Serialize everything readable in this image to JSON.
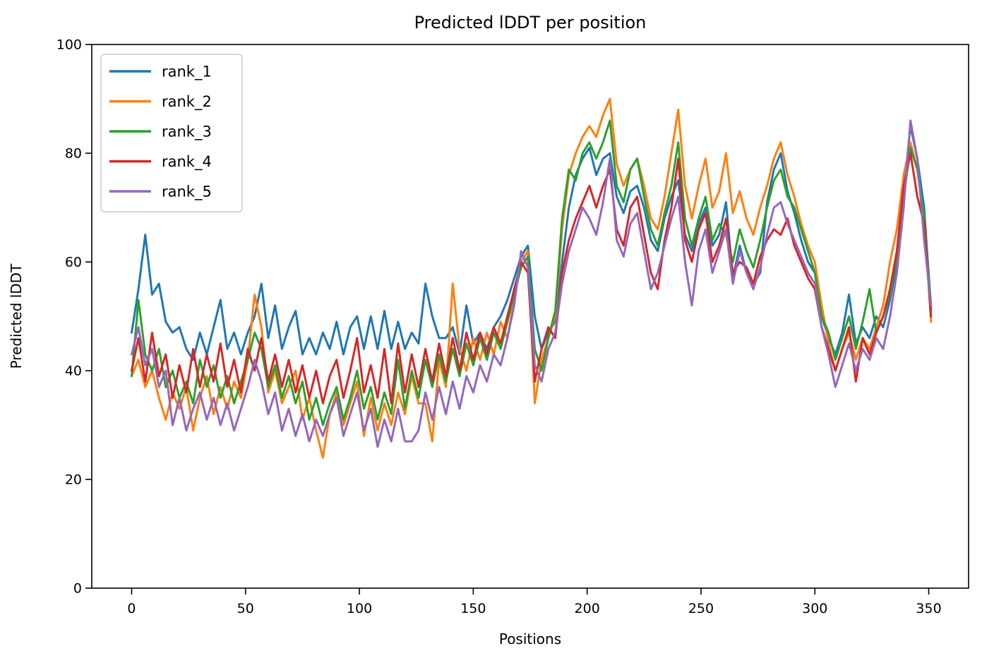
{
  "chart_data": {
    "type": "line",
    "title": "Predicted lDDT per position",
    "xlabel": "Positions",
    "ylabel": "Predicted lDDT",
    "xlim": [
      -17.5,
      367.5
    ],
    "ylim": [
      0,
      100
    ],
    "xticks": [
      0,
      50,
      100,
      150,
      200,
      250,
      300,
      350
    ],
    "yticks": [
      0,
      20,
      40,
      60,
      80,
      100
    ],
    "grid": false,
    "legend_position": "upper left",
    "x": [
      0,
      3,
      6,
      9,
      12,
      15,
      18,
      21,
      24,
      27,
      30,
      33,
      36,
      39,
      42,
      45,
      48,
      51,
      54,
      57,
      60,
      63,
      66,
      69,
      72,
      75,
      78,
      81,
      84,
      87,
      90,
      93,
      96,
      99,
      102,
      105,
      108,
      111,
      114,
      117,
      120,
      123,
      126,
      129,
      132,
      135,
      138,
      141,
      144,
      147,
      150,
      153,
      156,
      159,
      162,
      165,
      168,
      171,
      174,
      177,
      180,
      183,
      186,
      189,
      192,
      195,
      198,
      201,
      204,
      207,
      210,
      213,
      216,
      219,
      222,
      225,
      228,
      231,
      234,
      237,
      240,
      243,
      246,
      249,
      252,
      255,
      258,
      261,
      264,
      267,
      270,
      273,
      276,
      279,
      282,
      285,
      288,
      291,
      294,
      297,
      300,
      303,
      306,
      309,
      312,
      315,
      318,
      321,
      324,
      327,
      330,
      333,
      336,
      339,
      342,
      345,
      348,
      351
    ],
    "series": [
      {
        "name": "rank_1",
        "color": "#1f77b4",
        "values": [
          47,
          55,
          65,
          54,
          56,
          49,
          47,
          48,
          44,
          42,
          47,
          43,
          48,
          53,
          44,
          47,
          43,
          47,
          50,
          56,
          46,
          52,
          44,
          48,
          51,
          43,
          46,
          43,
          47,
          44,
          49,
          43,
          48,
          50,
          44,
          50,
          44,
          51,
          44,
          49,
          44,
          47,
          45,
          56,
          50,
          46,
          46,
          48,
          43,
          52,
          45,
          47,
          44,
          48,
          50,
          53,
          57,
          61,
          63,
          50,
          44,
          47,
          49,
          60,
          70,
          76,
          79,
          81,
          76,
          79,
          80,
          72,
          69,
          73,
          74,
          70,
          64,
          62,
          68,
          72,
          75,
          65,
          62,
          67,
          70,
          63,
          65,
          71,
          57,
          63,
          58,
          56,
          58,
          71,
          77,
          80,
          73,
          69,
          64,
          60,
          58,
          50,
          46,
          43,
          47,
          54,
          45,
          48,
          46,
          50,
          48,
          53,
          60,
          73,
          85,
          79,
          70,
          51
        ]
      },
      {
        "name": "rank_2",
        "color": "#ff7f0e",
        "values": [
          39,
          42,
          37,
          40,
          35,
          31,
          36,
          33,
          37,
          29,
          35,
          39,
          32,
          37,
          33,
          38,
          35,
          42,
          54,
          48,
          36,
          40,
          34,
          37,
          40,
          31,
          35,
          29,
          24,
          32,
          36,
          30,
          34,
          38,
          28,
          35,
          29,
          34,
          30,
          36,
          32,
          39,
          34,
          34,
          27,
          42,
          37,
          56,
          44,
          40,
          46,
          42,
          47,
          43,
          49,
          46,
          53,
          60,
          62,
          34,
          42,
          46,
          50,
          66,
          76,
          80,
          83,
          85,
          83,
          87,
          90,
          78,
          74,
          77,
          79,
          74,
          68,
          66,
          72,
          80,
          88,
          74,
          68,
          74,
          79,
          70,
          73,
          80,
          69,
          73,
          68,
          65,
          70,
          74,
          79,
          82,
          76,
          72,
          67,
          63,
          60,
          52,
          45,
          40,
          44,
          47,
          42,
          46,
          44,
          48,
          52,
          60,
          66,
          76,
          82,
          77,
          68,
          49
        ]
      },
      {
        "name": "rank_3",
        "color": "#2ca02c",
        "values": [
          39,
          53,
          43,
          40,
          44,
          37,
          40,
          35,
          38,
          34,
          42,
          37,
          41,
          35,
          39,
          34,
          38,
          42,
          47,
          44,
          37,
          41,
          35,
          39,
          34,
          38,
          31,
          35,
          30,
          34,
          37,
          31,
          35,
          40,
          33,
          37,
          31,
          36,
          32,
          42,
          33,
          40,
          35,
          42,
          37,
          43,
          38,
          44,
          39,
          45,
          41,
          46,
          42,
          47,
          44,
          49,
          54,
          59,
          61,
          44,
          40,
          46,
          51,
          68,
          77,
          75,
          80,
          82,
          79,
          82,
          86,
          74,
          71,
          77,
          79,
          72,
          66,
          63,
          69,
          74,
          82,
          68,
          63,
          68,
          72,
          64,
          67,
          65,
          60,
          66,
          62,
          59,
          64,
          70,
          75,
          77,
          72,
          70,
          66,
          62,
          58,
          50,
          47,
          42,
          46,
          50,
          44,
          49,
          55,
          47,
          50,
          54,
          61,
          72,
          81,
          77,
          69,
          52
        ]
      },
      {
        "name": "rank_4",
        "color": "#d62728",
        "values": [
          40,
          46,
          38,
          47,
          39,
          43,
          35,
          41,
          36,
          44,
          37,
          43,
          38,
          45,
          37,
          42,
          36,
          44,
          40,
          46,
          38,
          43,
          37,
          42,
          36,
          41,
          35,
          40,
          34,
          39,
          42,
          35,
          40,
          46,
          36,
          41,
          35,
          44,
          34,
          45,
          36,
          43,
          37,
          44,
          38,
          45,
          39,
          46,
          40,
          47,
          42,
          47,
          43,
          48,
          45,
          50,
          55,
          60,
          58,
          38,
          44,
          48,
          46,
          58,
          64,
          68,
          71,
          74,
          70,
          74,
          77,
          66,
          63,
          70,
          72,
          65,
          58,
          55,
          64,
          70,
          79,
          64,
          60,
          66,
          69,
          60,
          63,
          68,
          58,
          60,
          59,
          56,
          61,
          64,
          66,
          65,
          68,
          63,
          60,
          57,
          55,
          48,
          44,
          40,
          44,
          48,
          38,
          46,
          43,
          47,
          50,
          55,
          62,
          74,
          80,
          72,
          67,
          50
        ]
      },
      {
        "name": "rank_5",
        "color": "#9467bd",
        "values": [
          43,
          48,
          41,
          44,
          37,
          40,
          30,
          35,
          29,
          33,
          36,
          31,
          35,
          30,
          34,
          29,
          33,
          37,
          42,
          38,
          32,
          36,
          29,
          33,
          28,
          32,
          27,
          31,
          28,
          32,
          35,
          28,
          32,
          36,
          29,
          33,
          26,
          31,
          27,
          33,
          27,
          27,
          29,
          36,
          31,
          37,
          32,
          38,
          33,
          39,
          36,
          41,
          38,
          43,
          41,
          46,
          52,
          62,
          59,
          41,
          38,
          44,
          47,
          56,
          62,
          66,
          70,
          68,
          65,
          71,
          79,
          64,
          61,
          67,
          69,
          62,
          55,
          58,
          63,
          68,
          72,
          60,
          52,
          62,
          66,
          58,
          62,
          66,
          56,
          62,
          58,
          55,
          59,
          65,
          70,
          71,
          67,
          64,
          61,
          58,
          56,
          48,
          43,
          37,
          41,
          45,
          40,
          44,
          42,
          46,
          44,
          50,
          58,
          70,
          86,
          79,
          64,
          52
        ]
      }
    ]
  }
}
